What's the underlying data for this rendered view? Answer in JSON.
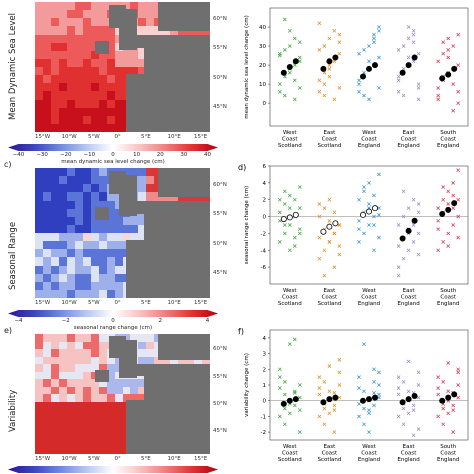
{
  "rows": [
    {
      "letter": "",
      "row_title": "Mean Dynamic Sea Level",
      "map_theme": "red",
      "colorbar": {
        "ticks": [
          "−40",
          "−30",
          "−20",
          "−10",
          "0",
          "10",
          "20",
          "30",
          "40"
        ],
        "label": "mean dynamic sea level change (cm)",
        "colors": [
          "#2b1790",
          "#3d45c0",
          "#6f8ae0",
          "#b8c8f0",
          "#ffffff",
          "#f8c4c4",
          "#ef7f7f",
          "#e23333",
          "#b30012"
        ]
      },
      "map_lat_labels": [
        "60°N",
        "55°N",
        "50°N",
        "45°N"
      ],
      "map_lon_labels": [
        "15°W",
        "10°W",
        "5°W",
        "0°",
        "5°E",
        "10°E",
        "15°E"
      ]
    },
    {
      "letter": "c)",
      "row_title": "Seasonal Range",
      "map_theme": "blue",
      "colorbar": {
        "ticks": [
          "−4",
          "−2",
          "0",
          "2",
          "4"
        ],
        "label": "seasonal range change (cm)",
        "colors": [
          "#2b1790",
          "#3d45c0",
          "#6f8ae0",
          "#b8c8f0",
          "#ffffff",
          "#f8c4c4",
          "#ef7f7f",
          "#e23333",
          "#b30012"
        ]
      },
      "map_lat_labels": [
        "60°N",
        "55°N",
        "50°N",
        "45°N"
      ],
      "map_lon_labels": [
        "15°W",
        "10°W",
        "5°W",
        "0°",
        "5°E",
        "10°E",
        "15°E"
      ]
    },
    {
      "letter": "e)",
      "row_title": "Variability",
      "map_theme": "mixed",
      "colorbar": {
        "ticks": [],
        "label": "",
        "colors": [
          "#2b1790",
          "#3d45c0",
          "#6f8ae0",
          "#b8c8f0",
          "#ffffff",
          "#f8c4c4",
          "#ef7f7f",
          "#e23333",
          "#b30012"
        ]
      },
      "map_lat_labels": [
        "60°N",
        "55°N",
        "50°N",
        "45°N"
      ],
      "map_lon_labels": [
        "15°W",
        "10°W",
        "5°W",
        "0°",
        "5°E",
        "10°E",
        "15°E"
      ]
    }
  ],
  "chart_data": [
    {
      "type": "scatter",
      "letter": "",
      "ylabel": "mean dynamic sea level change (cm)",
      "ylim": [
        -12,
        50
      ],
      "yticks": [
        0,
        10,
        20,
        30,
        40
      ],
      "hline": null,
      "categories": [
        "West\nCoast\nScotland",
        "East\nCoast\nScotland",
        "West\nCoast\nEngland",
        "East\nCoast\nEngland",
        "South\nCoast\nEngland"
      ],
      "colors": [
        "#3aa33a",
        "#e08a1a",
        "#2f8fd8",
        "#9a86c8",
        "#d8304a"
      ],
      "spread": [
        [
          10,
          14,
          18,
          20,
          22,
          25,
          28,
          30,
          34,
          8,
          6,
          4,
          16,
          12,
          24,
          26,
          44,
          38,
          2,
          32
        ],
        [
          12,
          16,
          20,
          22,
          26,
          28,
          30,
          34,
          38,
          8,
          6,
          4,
          18,
          24,
          36,
          42,
          10,
          14,
          2,
          32
        ],
        [
          10,
          14,
          18,
          20,
          24,
          26,
          28,
          30,
          34,
          8,
          6,
          16,
          22,
          36,
          40,
          12,
          4,
          2,
          32,
          38
        ],
        [
          12,
          16,
          20,
          22,
          26,
          28,
          30,
          34,
          36,
          8,
          6,
          18,
          24,
          38,
          10,
          14,
          4,
          40,
          32,
          2
        ],
        [
          8,
          12,
          16,
          18,
          20,
          22,
          26,
          28,
          30,
          6,
          4,
          14,
          24,
          10,
          36,
          2,
          32,
          34,
          -4,
          0
        ]
      ],
      "means": [
        [
          16,
          19,
          22
        ],
        [
          18,
          22,
          24
        ],
        [
          14,
          18,
          20
        ],
        [
          16,
          20,
          24
        ],
        [
          13,
          15,
          18
        ]
      ]
    },
    {
      "type": "scatter",
      "letter": "d)",
      "ylabel": "seasonal range change (cm)",
      "ylim": [
        -8,
        6
      ],
      "yticks": [
        -6,
        -4,
        -2,
        0,
        2,
        4,
        6
      ],
      "hline": 0,
      "categories": [
        "West\nCoast\nScotland",
        "East\nCoast\nScotland",
        "West\nCoast\nEngland",
        "East\nCoast\nEngland",
        "South\nCoast\nEngland"
      ],
      "colors": [
        "#3aa33a",
        "#e08a1a",
        "#2f8fd8",
        "#9a86c8",
        "#d8304a"
      ],
      "spread": [
        [
          -3,
          -2,
          -1,
          0,
          1,
          2,
          3,
          -4,
          -2.5,
          -1.5,
          0.5,
          1.5,
          2.5,
          -3.5,
          3.5,
          -0.5,
          -1,
          1,
          2,
          -2
        ],
        [
          -5,
          -4,
          -3,
          -2,
          -1,
          0,
          1,
          2,
          -6,
          -3.5,
          -2.5,
          -1.5,
          -0.5,
          0.5,
          -4.5,
          1.5,
          -7,
          -3,
          -2,
          -1
        ],
        [
          -3,
          -2,
          -1,
          0,
          1,
          2,
          3,
          4,
          -4,
          -2.5,
          -1.5,
          0.5,
          1.5,
          2.5,
          5,
          -0.5,
          3.5,
          1,
          -1,
          0.2
        ],
        [
          -6,
          -5,
          -4,
          -3,
          -2,
          -1,
          0,
          1,
          2,
          -4.5,
          -3.5,
          -2.5,
          -1.5,
          -0.5,
          0.5,
          -7,
          3,
          -2,
          -1,
          1.5
        ],
        [
          -4,
          -3,
          -2,
          -1,
          0,
          1,
          2,
          3,
          4,
          -2.5,
          -1.5,
          0.5,
          1.5,
          2.5,
          5.5,
          -0.5,
          3.5,
          -3.5,
          1,
          2
        ]
      ],
      "means": [
        [
          -0.3,
          -0.1,
          0.2
        ],
        [
          -1.8,
          -1.2,
          -0.8
        ],
        [
          0.2,
          0.6,
          1.0
        ],
        [
          -2.6,
          -1.7,
          -0.5
        ],
        [
          0.3,
          0.8,
          1.6
        ]
      ],
      "mean_style": [
        "open",
        "open",
        "open",
        "filled",
        "filled"
      ]
    },
    {
      "type": "scatter",
      "letter": "f)",
      "ylabel": "variability change (cm)",
      "ylim": [
        -2.5,
        4.5
      ],
      "yticks": [
        -2,
        -1,
        0,
        1,
        2,
        3,
        4
      ],
      "hline": 0,
      "categories": [
        "West\nCoast\nScotland",
        "East\nCoast\nScotland",
        "West\nCoast\nEngland",
        "East\nCoast\nEngland",
        "South\nCoast\nEngland"
      ],
      "colors": [
        "#3aa33a",
        "#e08a1a",
        "#2f8fd8",
        "#9a86c8",
        "#d8304a"
      ],
      "spread": [
        [
          -1,
          -0.5,
          0,
          0.5,
          1,
          1.5,
          -1.5,
          -0.8,
          -0.3,
          0.2,
          0.8,
          1.2,
          3.6,
          3.9,
          -2,
          2,
          0.4,
          -0.2,
          0.6,
          -0.6
        ],
        [
          -1,
          -0.5,
          0,
          0.5,
          1,
          1.5,
          -1.5,
          -0.8,
          -0.3,
          0.2,
          0.8,
          1.2,
          2.2,
          -2,
          1.8,
          0.4,
          -0.2,
          0.6,
          -0.6,
          2.6
        ],
        [
          -1,
          -0.5,
          0,
          0.5,
          1,
          1.5,
          -1.5,
          -0.8,
          -0.3,
          0.2,
          0.8,
          3.6,
          -2,
          2,
          0.4,
          -0.2,
          0.6,
          -0.6,
          1.2,
          1.8
        ],
        [
          -1,
          -0.5,
          0,
          0.5,
          1,
          1.5,
          -1.5,
          -0.8,
          -0.3,
          0.2,
          0.8,
          1.2,
          2.5,
          -2.2,
          -1.8,
          0.4,
          -0.2,
          0.6,
          -0.6,
          1.8
        ],
        [
          -1,
          -0.5,
          0,
          0.5,
          1,
          1.5,
          -1.5,
          -0.8,
          -0.3,
          0.2,
          0.8,
          1.2,
          2.4,
          -2,
          2,
          0.4,
          -0.2,
          0.6,
          -0.6,
          1.8
        ]
      ],
      "means": [
        [
          -0.2,
          0,
          0.1
        ],
        [
          -0.1,
          0.1,
          0.2
        ],
        [
          0,
          0.1,
          0.2
        ],
        [
          -0.1,
          0.1,
          0.3
        ],
        [
          0,
          0.2,
          0.4
        ]
      ]
    }
  ]
}
